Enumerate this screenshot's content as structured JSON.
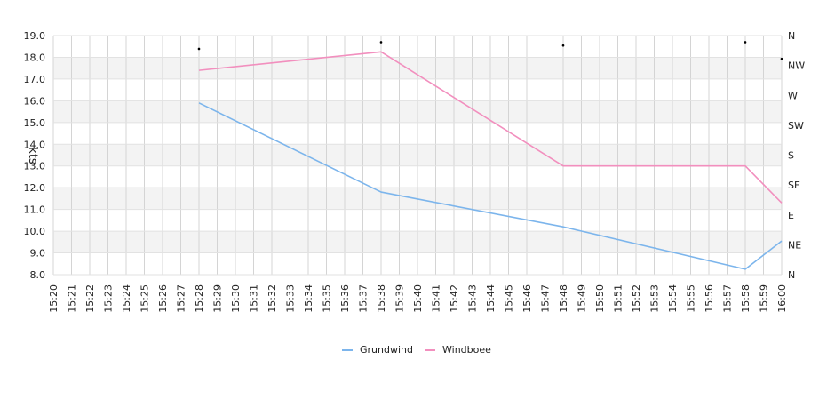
{
  "chart_data": {
    "type": "line",
    "ylabel": "kts",
    "ylim": [
      8.0,
      19.0
    ],
    "y_ticks": [
      "8.0",
      "9.0",
      "10.0",
      "11.0",
      "12.0",
      "13.0",
      "14.0",
      "15.0",
      "16.0",
      "17.0",
      "18.0",
      "19.0"
    ],
    "x_ticks": [
      "15:20",
      "15:21",
      "15:22",
      "15:23",
      "15:24",
      "15:25",
      "15:26",
      "15:27",
      "15:28",
      "15:29",
      "15:30",
      "15:31",
      "15:32",
      "15:33",
      "15:34",
      "15:35",
      "15:36",
      "15:37",
      "15:38",
      "15:39",
      "15:40",
      "15:41",
      "15:42",
      "15:43",
      "15:44",
      "15:45",
      "15:46",
      "15:47",
      "15:48",
      "15:49",
      "15:50",
      "15:51",
      "15:52",
      "15:53",
      "15:54",
      "15:55",
      "15:56",
      "15:57",
      "15:58",
      "15:59",
      "16:00"
    ],
    "direction_axis": {
      "labels": [
        "N",
        "NE",
        "E",
        "SE",
        "S",
        "SW",
        "W",
        "NW",
        "N"
      ],
      "range": [
        0,
        360
      ]
    },
    "series": [
      {
        "name": "Grundwind",
        "color": "#7cb5ec",
        "x": [
          "15:28",
          "15:38",
          "15:48",
          "15:58",
          "16:00"
        ],
        "y": [
          15.9,
          11.8,
          10.2,
          8.25,
          9.55
        ]
      },
      {
        "name": "Windboee",
        "color": "#f28fbe",
        "x": [
          "15:28",
          "15:38",
          "15:48",
          "15:58",
          "16:00"
        ],
        "y": [
          17.4,
          18.25,
          13.0,
          13.0,
          11.3
        ]
      }
    ],
    "direction_points": {
      "x": [
        "15:28",
        "15:38",
        "15:48",
        "15:58",
        "16:00"
      ],
      "deg": [
        340,
        350,
        345,
        350,
        325
      ]
    },
    "grid": true,
    "legend": "bottom"
  }
}
